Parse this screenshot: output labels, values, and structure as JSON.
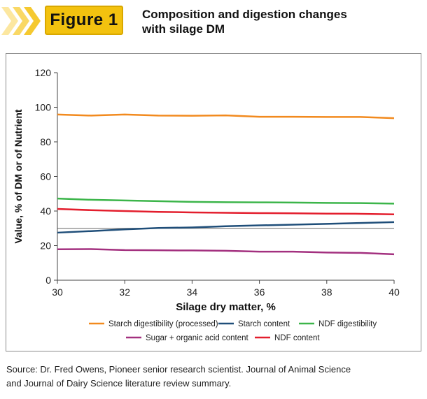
{
  "header": {
    "figure_label": "Figure 1",
    "title_line1": "Composition and digestion changes",
    "title_line2": "with silage DM"
  },
  "source_text": {
    "line1": "Source:  Dr. Fred Owens, Pioneer senior research scientist. Journal of Animal Science",
    "line2": "and Journal of Dairy Science literature review summary."
  },
  "chart_data": {
    "type": "line",
    "title": "Composition and digestion changes with silage DM",
    "xlabel": "Silage dry matter, %",
    "ylabel": "Value, % of DM or of Nutrient",
    "xlim": [
      30,
      40
    ],
    "ylim": [
      0,
      120
    ],
    "x_ticks": [
      30,
      32,
      34,
      36,
      38,
      40
    ],
    "y_ticks": [
      0,
      20,
      40,
      60,
      80,
      100,
      120
    ],
    "grid": false,
    "reference_line": 30,
    "legend_position": "bottom",
    "x": [
      30,
      31,
      32,
      33,
      34,
      35,
      36,
      37,
      38,
      39,
      40
    ],
    "series": [
      {
        "name": "Starch digestibility (processed)",
        "color": "#f28a1e",
        "values": [
          95.8,
          95.2,
          95.8,
          95.2,
          95.1,
          95.3,
          94.5,
          94.5,
          94.4,
          94.4,
          93.7
        ]
      },
      {
        "name": "Starch content",
        "color": "#1f4e79",
        "values": [
          27.5,
          28.4,
          29.4,
          30.2,
          30.5,
          31.2,
          31.7,
          32.1,
          32.6,
          33.1,
          33.6
        ]
      },
      {
        "name": "NDF digestibility",
        "color": "#3cb54a",
        "values": [
          47.2,
          46.5,
          46.1,
          45.7,
          45.3,
          45.1,
          45.0,
          44.9,
          44.7,
          44.6,
          44.3
        ]
      },
      {
        "name": "Sugar + organic acid content",
        "color": "#a3307f",
        "values": [
          17.9,
          18.0,
          17.4,
          17.3,
          17.2,
          17.0,
          16.5,
          16.5,
          16.0,
          15.8,
          15.0
        ]
      },
      {
        "name": "NDF content",
        "color": "#e31e2d",
        "values": [
          41.2,
          40.5,
          40.0,
          39.5,
          39.2,
          39.0,
          38.8,
          38.7,
          38.5,
          38.4,
          38.1
        ]
      }
    ]
  },
  "colors": {
    "accent": "#f3c20f",
    "chevron_light": "#fbe28a",
    "chevron_mid": "#f7cf3c"
  }
}
